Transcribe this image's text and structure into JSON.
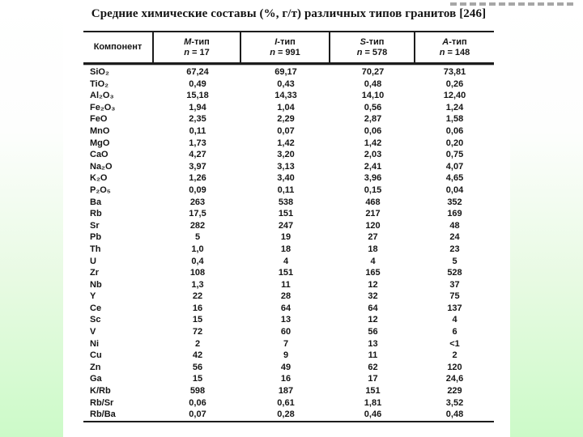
{
  "page": {
    "title": "Средние химические составы (%, г/т) различных типов гранитов [246]"
  },
  "table": {
    "component_header": "Компонент",
    "columns": [
      {
        "letter": "M",
        "suffix": "-тип",
        "n_var": "n",
        "n_rest": "= 17"
      },
      {
        "letter": "I",
        "suffix": "-тип",
        "n_var": "n",
        "n_rest": "= 991"
      },
      {
        "letter": "S",
        "suffix": "-тип",
        "n_var": "n",
        "n_rest": "= 578"
      },
      {
        "letter": "A",
        "suffix": "-тип",
        "n_var": "n",
        "n_rest": "= 148"
      }
    ],
    "rows": [
      {
        "component": "SiO₂",
        "values": [
          "67,24",
          "69,17",
          "70,27",
          "73,81"
        ]
      },
      {
        "component": "TiO₂",
        "values": [
          "0,49",
          "0,43",
          "0,48",
          "0,26"
        ]
      },
      {
        "component": "Al₂O₃",
        "values": [
          "15,18",
          "14,33",
          "14,10",
          "12,40"
        ]
      },
      {
        "component": "Fe₂O₃",
        "values": [
          "1,94",
          "1,04",
          "0,56",
          "1,24"
        ]
      },
      {
        "component": "FeO",
        "values": [
          "2,35",
          "2,29",
          "2,87",
          "1,58"
        ]
      },
      {
        "component": "MnO",
        "values": [
          "0,11",
          "0,07",
          "0,06",
          "0,06"
        ]
      },
      {
        "component": "MgO",
        "values": [
          "1,73",
          "1,42",
          "1,42",
          "0,20"
        ]
      },
      {
        "component": "CaO",
        "values": [
          "4,27",
          "3,20",
          "2,03",
          "0,75"
        ]
      },
      {
        "component": "Na₂O",
        "values": [
          "3,97",
          "3,13",
          "2,41",
          "4,07"
        ]
      },
      {
        "component": "K₂O",
        "values": [
          "1,26",
          "3,40",
          "3,96",
          "4,65"
        ]
      },
      {
        "component": "P₂O₅",
        "values": [
          "0,09",
          "0,11",
          "0,15",
          "0,04"
        ]
      },
      {
        "component": "Ba",
        "values": [
          "263",
          "538",
          "468",
          "352"
        ]
      },
      {
        "component": "Rb",
        "values": [
          "17,5",
          "151",
          "217",
          "169"
        ]
      },
      {
        "component": "Sr",
        "values": [
          "282",
          "247",
          "120",
          "48"
        ]
      },
      {
        "component": "Pb",
        "values": [
          "5",
          "19",
          "27",
          "24"
        ]
      },
      {
        "component": "Th",
        "values": [
          "1,0",
          "18",
          "18",
          "23"
        ]
      },
      {
        "component": "U",
        "values": [
          "0,4",
          "4",
          "4",
          "5"
        ]
      },
      {
        "component": "Zr",
        "values": [
          "108",
          "151",
          "165",
          "528"
        ]
      },
      {
        "component": "Nb",
        "values": [
          "1,3",
          "11",
          "12",
          "37"
        ]
      },
      {
        "component": "Y",
        "values": [
          "22",
          "28",
          "32",
          "75"
        ]
      },
      {
        "component": "Ce",
        "values": [
          "16",
          "64",
          "64",
          "137"
        ]
      },
      {
        "component": "Sc",
        "values": [
          "15",
          "13",
          "12",
          "4"
        ]
      },
      {
        "component": "V",
        "values": [
          "72",
          "60",
          "56",
          "6"
        ]
      },
      {
        "component": "Ni",
        "values": [
          "2",
          "7",
          "13",
          "<1"
        ]
      },
      {
        "component": "Cu",
        "values": [
          "42",
          "9",
          "11",
          "2"
        ]
      },
      {
        "component": "Zn",
        "values": [
          "56",
          "49",
          "62",
          "120"
        ]
      },
      {
        "component": "Ga",
        "values": [
          "15",
          "16",
          "17",
          "24,6"
        ]
      },
      {
        "component": "K/Rb",
        "values": [
          "598",
          "187",
          "151",
          "229"
        ]
      },
      {
        "component": "Rb/Sr",
        "values": [
          "0,06",
          "0,61",
          "1,81",
          "3,52"
        ]
      },
      {
        "component": "Rb/Ba",
        "values": [
          "0,07",
          "0,28",
          "0,46",
          "0,48"
        ]
      }
    ]
  }
}
